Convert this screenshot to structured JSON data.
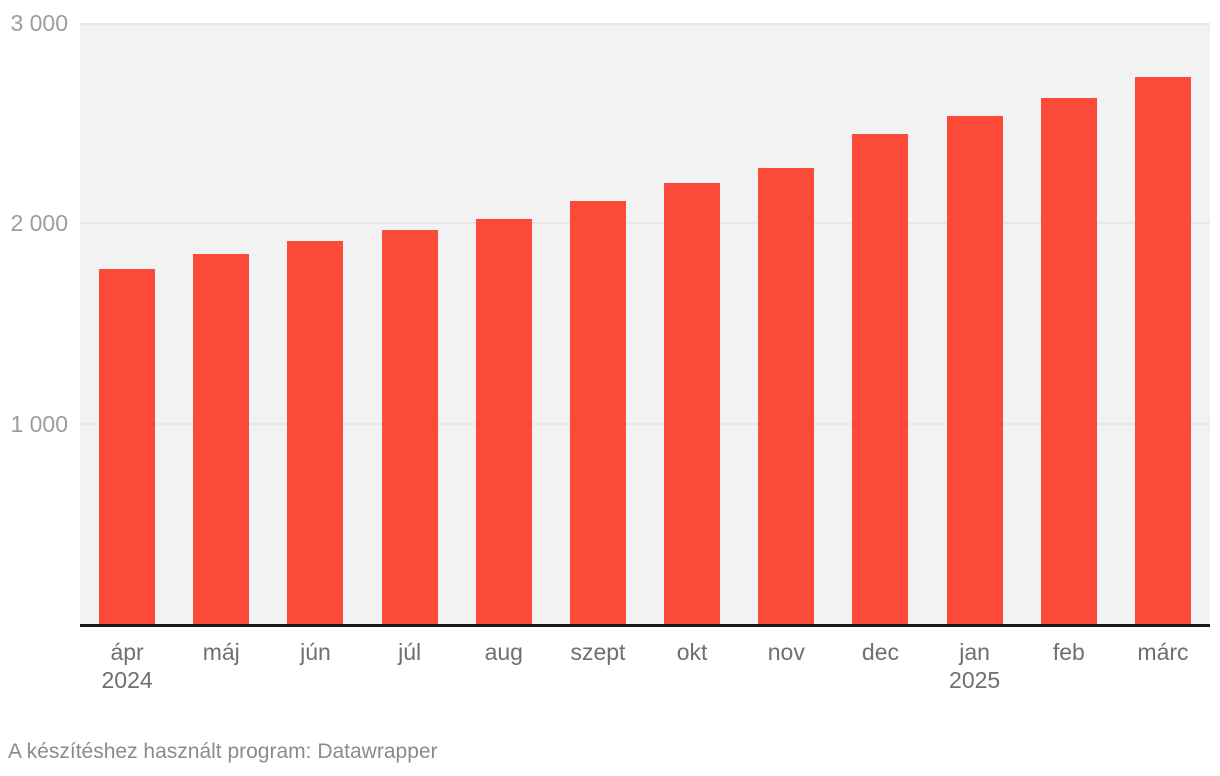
{
  "chart_data": {
    "type": "bar",
    "categories": [
      "ápr",
      "máj",
      "jún",
      "júl",
      "aug",
      "szept",
      "okt",
      "nov",
      "dec",
      "jan",
      "feb",
      "márc"
    ],
    "category_sublabels": [
      "2024",
      "",
      "",
      "",
      "",
      "",
      "",
      "",
      "",
      "2025",
      "",
      ""
    ],
    "values": [
      1770,
      1845,
      1910,
      1965,
      2020,
      2110,
      2200,
      2275,
      2445,
      2535,
      2625,
      2730
    ],
    "title": "",
    "xlabel": "",
    "ylabel": "",
    "ylim": [
      0,
      3000
    ],
    "yticks": [
      {
        "value": 1000,
        "label": "1 000"
      },
      {
        "value": 2000,
        "label": "2 000"
      },
      {
        "value": 3000,
        "label": "3 000"
      }
    ],
    "grid": true,
    "legend_position": "none",
    "bar_color": "#fb4a38",
    "plot_background": "#f2f2f2",
    "grid_color": "#e7e7e7",
    "axis_line_color": "#1a1a1a",
    "y_label_color": "#9e9e9e",
    "x_label_color": "#6f6f6f"
  },
  "footer": {
    "text": "A készítéshez használt program: Datawrapper"
  }
}
